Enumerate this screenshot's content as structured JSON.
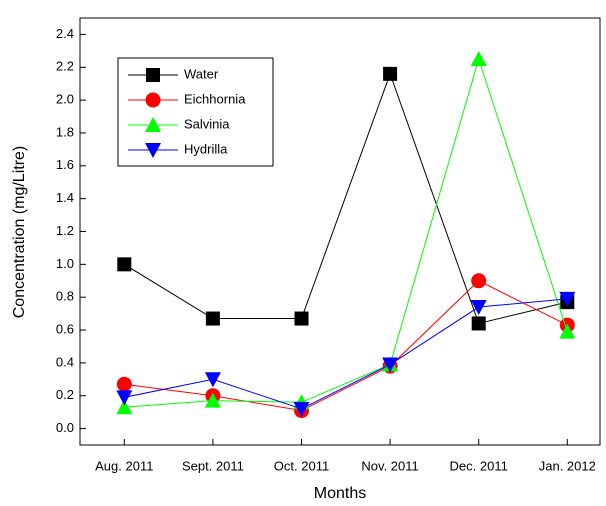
{
  "chart_data": {
    "type": "line",
    "x_label": "Months",
    "y_label": "Concentration (mg/Litre)",
    "categories": [
      "Aug. 2011",
      "Sept. 2011",
      "Oct. 2011",
      "Nov. 2011",
      "Dec. 2011",
      "Jan. 2012"
    ],
    "series": [
      {
        "name": "Water",
        "color": "#000000",
        "marker": "square",
        "values": [
          1.0,
          0.67,
          0.67,
          2.16,
          0.64,
          0.77
        ]
      },
      {
        "name": "Eichhornia",
        "color": "#ff0000",
        "marker": "circle",
        "values": [
          0.27,
          0.2,
          0.11,
          0.38,
          0.9,
          0.63
        ]
      },
      {
        "name": "Salvinia",
        "color": "#00ff00",
        "marker": "triangle-up",
        "values": [
          0.13,
          0.17,
          0.16,
          0.39,
          2.25,
          0.59
        ]
      },
      {
        "name": "Hydrilla",
        "color": "#0000ff",
        "marker": "triangle-down",
        "values": [
          0.19,
          0.3,
          0.12,
          0.39,
          0.74,
          0.79
        ]
      }
    ],
    "ylim": [
      -0.1,
      2.5
    ],
    "yticks": [
      {
        "value": 0,
        "label": "0.0"
      },
      0.2,
      0.4,
      0.6,
      0.8,
      {
        "value": 1,
        "label": "1.0"
      },
      1.2,
      1.4,
      1.6,
      1.8,
      {
        "value": 2,
        "label": "2.0"
      },
      2.2,
      2.4
    ],
    "legend": "top-left",
    "grid": false
  }
}
